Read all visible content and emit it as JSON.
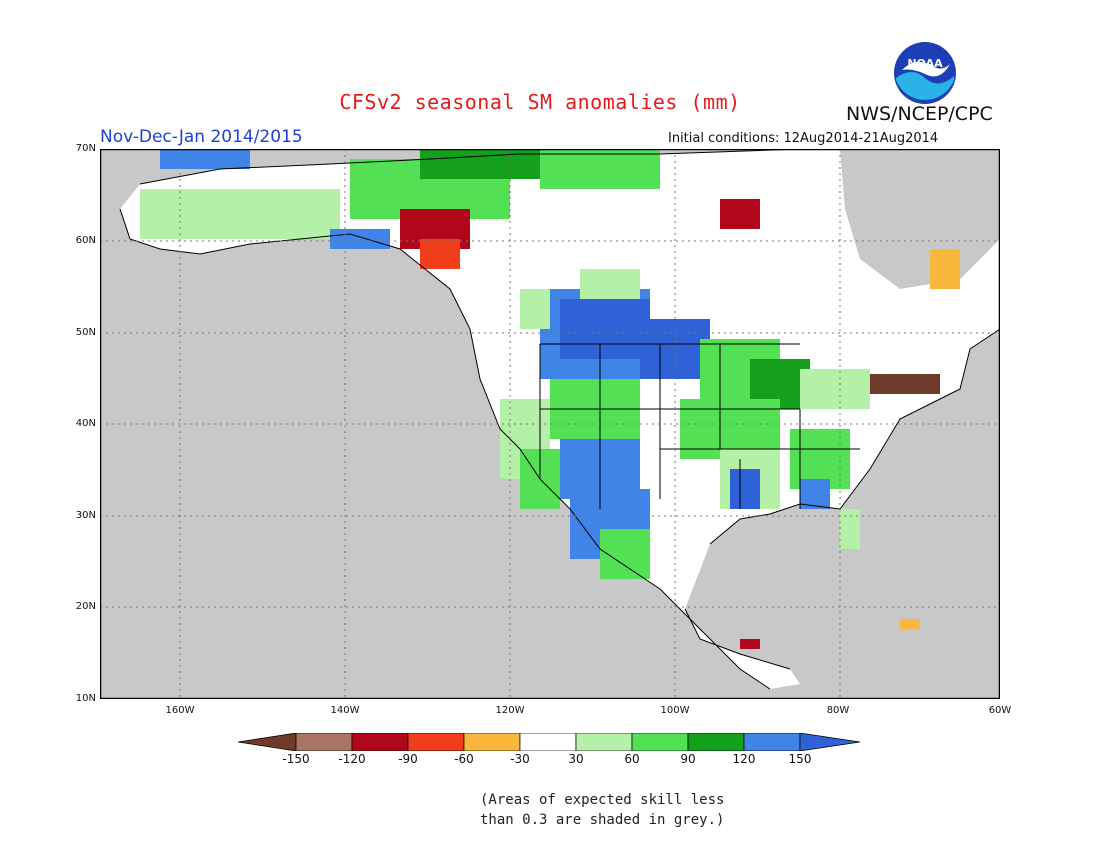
{
  "header": {
    "title": "CFSv2 seasonal SM anomalies (mm)",
    "agency": "NWS/NCEP/CPC",
    "period": "Nov-Dec-Jan 2014/2015",
    "initial_conditions": "Initial conditions: 12Aug2014-21Aug2014"
  },
  "map": {
    "lat_labels": [
      "70N",
      "60N",
      "50N",
      "40N",
      "30N",
      "20N",
      "10N"
    ],
    "lon_labels": [
      "160W",
      "140W",
      "120W",
      "100W",
      "80W",
      "60W"
    ],
    "ocean_color": "#c8c8c8"
  },
  "colorbar": {
    "labels": [
      "-150",
      "-120",
      "-90",
      "-60",
      "-30",
      "30",
      "60",
      "90",
      "120",
      "150"
    ],
    "colors": [
      "#6e3b2a",
      "#a97464",
      "#b0081a",
      "#f03d1c",
      "#f9b83c",
      "#ffffff",
      "#b5f0a8",
      "#54e054",
      "#14a01c",
      "#3f84e6",
      "#2e62d6"
    ]
  },
  "footnote": {
    "line1": "(Areas of expected skill less",
    "line2": "than 0.3 are shaded in grey.)"
  },
  "logo": {
    "text": "NOAA"
  }
}
